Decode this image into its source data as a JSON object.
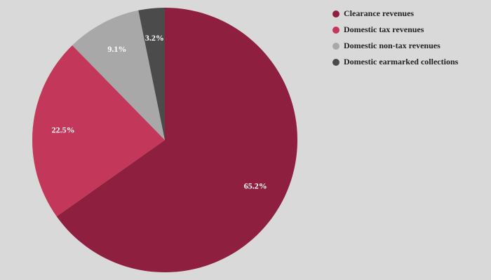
{
  "chart_data": {
    "type": "pie",
    "categories": [
      "Clearance revenues",
      "Domestic tax revenues",
      "Domestic non-tax revenues",
      "Domestic earmarked collections"
    ],
    "values": [
      65.2,
      22.5,
      9.1,
      3.2
    ],
    "value_labels": [
      "65.2%",
      "22.5%",
      "9.1%",
      "3.2%"
    ],
    "colors": [
      "#8e1f3f",
      "#c2375a",
      "#a8a8a8",
      "#4b4b4b"
    ],
    "legend": "top-right"
  }
}
